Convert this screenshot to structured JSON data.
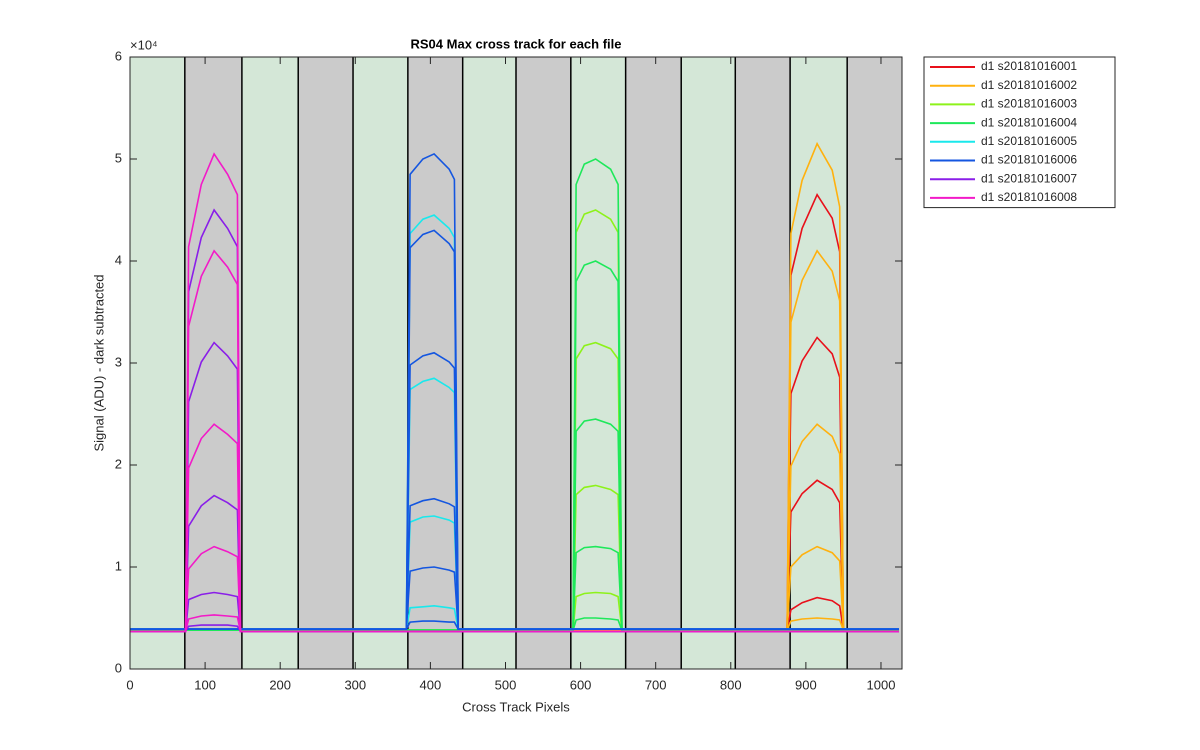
{
  "chart_data": {
    "type": "line",
    "title": "RS04  Max cross track for each file",
    "xlabel": "Cross Track Pixels",
    "ylabel": "Signal (ADU) - dark subtracted",
    "y_multiplier": "×10⁴",
    "xlim": [
      0,
      1028
    ],
    "xticks": [
      0,
      100,
      200,
      300,
      400,
      500,
      600,
      700,
      800,
      900,
      1000
    ],
    "ylim": [
      0,
      60000
    ],
    "yticks": [
      0,
      {
        "value": 10000,
        "label": "1"
      },
      {
        "value": 20000,
        "label": "2"
      },
      {
        "value": 30000,
        "label": "3"
      },
      {
        "value": 40000,
        "label": "4"
      },
      {
        "value": 50000,
        "label": "5"
      },
      {
        "value": 60000,
        "label": "6"
      }
    ],
    "band_edges": [
      73,
      149,
      224,
      297,
      370,
      443,
      514,
      587,
      660,
      734,
      806,
      879,
      955
    ],
    "band_colors": [
      "#d4e7d7",
      "#cbcbcb"
    ],
    "legend": "outside-right-top",
    "series": [
      {
        "name": "d1 s20181016001",
        "color": "#e8101a",
        "x": [
          0,
          875,
          880,
          895,
          915,
          935,
          945,
          950,
          1024
        ],
        "traces": [
          [
            3800,
            3800,
            38600,
            43200,
            46500,
            44200,
            40900,
            3800,
            3800
          ],
          [
            3800,
            3800,
            27000,
            30200,
            32500,
            30900,
            28600,
            3800,
            3800
          ],
          [
            3800,
            3800,
            15400,
            17200,
            18500,
            17600,
            16300,
            3800,
            3800
          ],
          [
            3800,
            3800,
            5800,
            6500,
            7000,
            6700,
            6200,
            3800,
            3800
          ]
        ]
      },
      {
        "name": "d1 s20181016002",
        "color": "#ffb10e",
        "x": [
          0,
          875,
          880,
          895,
          915,
          935,
          945,
          950,
          1024
        ],
        "traces": [
          [
            3800,
            3800,
            42700,
            47900,
            51500,
            48900,
            45300,
            3800,
            3800
          ],
          [
            3800,
            3800,
            34000,
            38100,
            41000,
            39000,
            36100,
            3800,
            3800
          ],
          [
            3800,
            3800,
            19900,
            22300,
            24000,
            22800,
            21100,
            3800,
            3800
          ],
          [
            3800,
            3800,
            10000,
            11200,
            12000,
            11400,
            10600,
            3800,
            3800
          ],
          [
            3800,
            3800,
            4700,
            4900,
            5000,
            4900,
            4800,
            3800,
            3800
          ]
        ]
      },
      {
        "name": "d1 s20181016003",
        "color": "#8df21a",
        "x": [
          0,
          590,
          594,
          605,
          620,
          640,
          650,
          655,
          1024
        ],
        "traces": [
          [
            3800,
            3800,
            42800,
            44600,
            45000,
            44100,
            42800,
            3800,
            3800
          ],
          [
            3800,
            3800,
            30400,
            31700,
            32000,
            31400,
            30400,
            3800,
            3800
          ],
          [
            3800,
            3800,
            17100,
            17800,
            18000,
            17600,
            17100,
            3800,
            3800
          ],
          [
            3800,
            3800,
            7100,
            7400,
            7500,
            7400,
            7100,
            3800,
            3800
          ]
        ]
      },
      {
        "name": "d1 s20181016004",
        "color": "#1ee85a",
        "x": [
          0,
          590,
          594,
          605,
          620,
          640,
          650,
          655,
          1024
        ],
        "traces": [
          [
            3800,
            3800,
            47500,
            49500,
            50000,
            49000,
            47500,
            3800,
            3800
          ],
          [
            3800,
            3800,
            38000,
            39600,
            40000,
            39200,
            38000,
            3800,
            3800
          ],
          [
            3800,
            3800,
            23300,
            24300,
            24500,
            24000,
            23300,
            3800,
            3800
          ],
          [
            3800,
            3800,
            11400,
            11900,
            12000,
            11800,
            11400,
            3800,
            3800
          ],
          [
            3800,
            3800,
            4800,
            5000,
            5000,
            4900,
            4800,
            3800,
            3800
          ]
        ]
      },
      {
        "name": "d1 s20181016005",
        "color": "#19e8ec",
        "x": [
          0,
          368,
          373,
          390,
          405,
          425,
          432,
          437,
          1024
        ],
        "traces": [
          [
            3900,
            3900,
            42700,
            44100,
            44500,
            43200,
            42300,
            3900,
            3900
          ],
          [
            3900,
            3900,
            27400,
            28200,
            28500,
            27600,
            27100,
            3900,
            3900
          ],
          [
            3900,
            3900,
            14400,
            14900,
            15000,
            14600,
            14300,
            3900,
            3900
          ],
          [
            3900,
            3900,
            6000,
            6100,
            6200,
            6000,
            5900,
            3900,
            3900
          ]
        ]
      },
      {
        "name": "d1 s20181016006",
        "color": "#1456e0",
        "x": [
          0,
          368,
          373,
          390,
          405,
          425,
          432,
          437,
          1024
        ],
        "traces": [
          [
            3900,
            3900,
            48500,
            50000,
            50500,
            49000,
            48000,
            3900,
            3900
          ],
          [
            3900,
            3900,
            41300,
            42600,
            43000,
            41700,
            40900,
            3900,
            3900
          ],
          [
            3900,
            3900,
            29800,
            30700,
            31000,
            30100,
            29500,
            3900,
            3900
          ],
          [
            3900,
            3900,
            16000,
            16500,
            16700,
            16200,
            15900,
            3900,
            3900
          ],
          [
            3900,
            3900,
            9600,
            9900,
            10000,
            9700,
            9500,
            3900,
            3900
          ],
          [
            3900,
            3900,
            4600,
            4700,
            4700,
            4600,
            4600,
            3900,
            3900
          ]
        ]
      },
      {
        "name": "d1 s20181016007",
        "color": "#8a1ee8",
        "x": [
          0,
          74,
          78,
          95,
          112,
          130,
          143,
          147,
          1024
        ],
        "traces": [
          [
            3700,
            3700,
            37000,
            42300,
            45000,
            43200,
            41400,
            3700,
            3700
          ],
          [
            3700,
            3700,
            26200,
            30100,
            32000,
            30700,
            29400,
            3700,
            3700
          ],
          [
            3700,
            3700,
            14000,
            16000,
            17000,
            16300,
            15600,
            3700,
            3700
          ],
          [
            3700,
            3700,
            6800,
            7300,
            7500,
            7300,
            7100,
            3700,
            3700
          ],
          [
            3700,
            3700,
            4200,
            4300,
            4300,
            4300,
            4200,
            3700,
            3700
          ]
        ]
      },
      {
        "name": "d1 s20181016008",
        "color": "#f21ac8",
        "x": [
          0,
          74,
          78,
          95,
          112,
          130,
          143,
          147,
          1024
        ],
        "traces": [
          [
            3700,
            3700,
            41400,
            47500,
            50500,
            48500,
            46500,
            3700,
            3700
          ],
          [
            3700,
            3700,
            33600,
            38500,
            41000,
            39400,
            37700,
            3700,
            3700
          ],
          [
            3700,
            3700,
            19700,
            22600,
            24000,
            23000,
            22100,
            3700,
            3700
          ],
          [
            3700,
            3700,
            9800,
            11300,
            12000,
            11500,
            11000,
            3700,
            3700
          ],
          [
            3700,
            3700,
            4900,
            5200,
            5300,
            5200,
            5100,
            3700,
            3700
          ]
        ]
      }
    ]
  }
}
